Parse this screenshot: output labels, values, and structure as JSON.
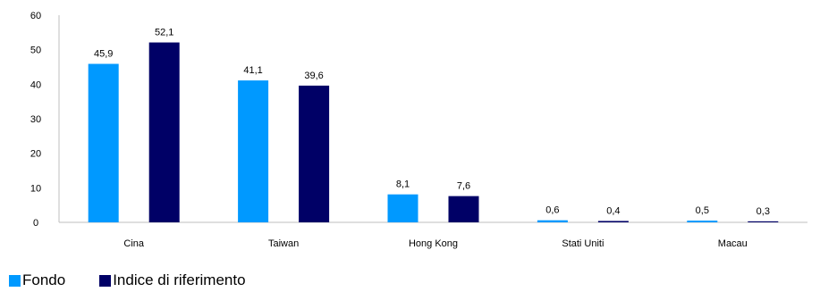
{
  "chart_data": {
    "type": "bar",
    "title": "",
    "xlabel": "",
    "ylabel": "",
    "categories": [
      "Cina",
      "Taiwan",
      "Hong Kong",
      "Stati Uniti",
      "Macau"
    ],
    "series": [
      {
        "name": "Fondo",
        "values": [
          45.9,
          41.1,
          8.1,
          0.6,
          0.5
        ],
        "labels": [
          "45,9",
          "41,1",
          "8,1",
          "0,6",
          "0,5"
        ],
        "color": "#0099ff"
      },
      {
        "name": "Indice di riferimento",
        "values": [
          52.1,
          39.6,
          7.6,
          0.4,
          0.3
        ],
        "labels": [
          "52,1",
          "39,6",
          "7,6",
          "0,4",
          "0,3"
        ],
        "color": "#000066"
      }
    ],
    "ylim": [
      0,
      60
    ],
    "yticks": [
      "0",
      "10",
      "20",
      "30",
      "40",
      "50",
      "60"
    ],
    "grid": false,
    "legend_position": "bottom-left",
    "axis_color": "#bfbfbf"
  }
}
